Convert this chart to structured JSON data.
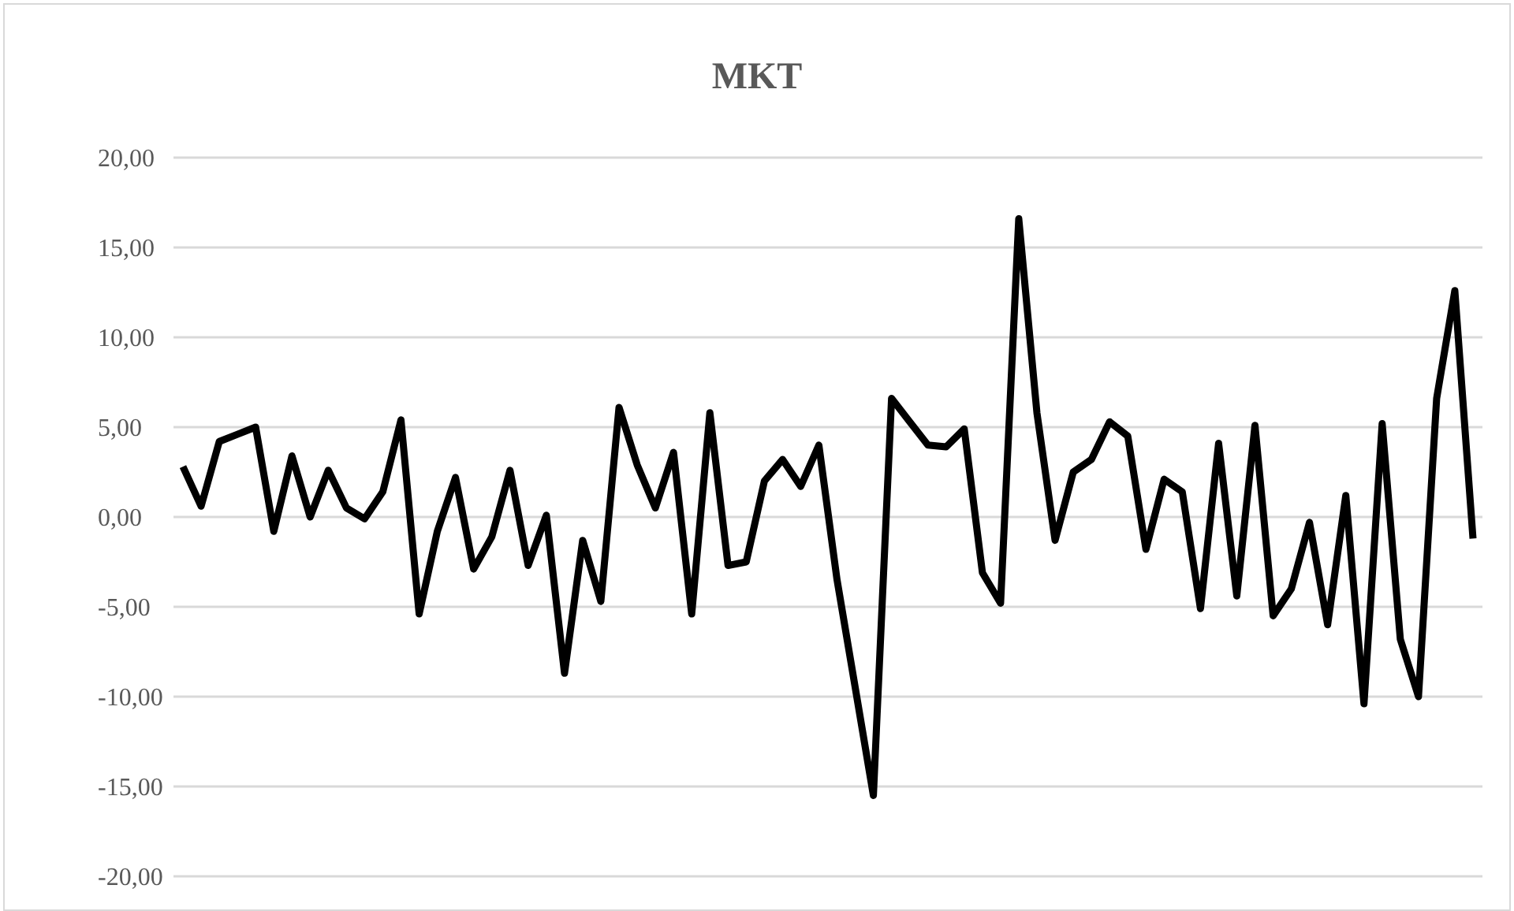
{
  "chart_data": {
    "type": "line",
    "title": "MKT",
    "categories": [
      null,
      null,
      null,
      null,
      null,
      null,
      null,
      null,
      null,
      null,
      null,
      null,
      null,
      null,
      null,
      null,
      null,
      null,
      null,
      null,
      null,
      null,
      null,
      null,
      null,
      null,
      null,
      null,
      null,
      null,
      null,
      null,
      null,
      null,
      null,
      null,
      null,
      null,
      null,
      null,
      null,
      null,
      null,
      null,
      null,
      null,
      null,
      null,
      null,
      null,
      null,
      null,
      null,
      null,
      null,
      null,
      null,
      null,
      null,
      null,
      null,
      null,
      null,
      null,
      null,
      null,
      null,
      null,
      null,
      null,
      null,
      null
    ],
    "series": [
      {
        "color": "#000000",
        "values": [
          2.8,
          0.6,
          4.2,
          4.6,
          5.0,
          -0.8,
          3.4,
          0.0,
          2.6,
          0.5,
          -0.1,
          1.4,
          5.4,
          -5.4,
          -0.8,
          2.2,
          -2.9,
          -1.1,
          2.6,
          -2.7,
          0.1,
          -8.7,
          -1.3,
          -4.7,
          6.1,
          2.9,
          0.5,
          3.6,
          -5.4,
          5.8,
          -2.7,
          -2.5,
          2.0,
          3.2,
          1.7,
          4.0,
          -3.5,
          -9.5,
          -15.5,
          6.6,
          5.3,
          4.0,
          3.9,
          4.9,
          -3.1,
          -4.8,
          16.6,
          5.8,
          -1.3,
          2.5,
          3.2,
          5.3,
          4.5,
          -1.8,
          2.1,
          1.4,
          -5.1,
          4.1,
          -4.4,
          5.1,
          -5.5,
          -4.0,
          -0.3,
          -6.0,
          1.2,
          -10.4,
          5.2,
          -6.8,
          -10.0,
          6.6,
          12.6,
          -1.2
        ]
      }
    ],
    "ylim": [
      -20,
      20
    ],
    "yticks": [
      {
        "value": -20,
        "label": "-20,00"
      },
      {
        "value": -15,
        "label": "-15,00"
      },
      {
        "value": -10,
        "label": "-10,00"
      },
      {
        "value": -5,
        "label": "-5,00"
      },
      {
        "value": 0,
        "label": "0,00"
      },
      {
        "value": 5,
        "label": "5,00"
      },
      {
        "value": 10,
        "label": "10,00"
      },
      {
        "value": 15,
        "label": "15,00"
      },
      {
        "value": 20,
        "label": "20,00"
      }
    ],
    "grid": "y",
    "tick_labels": "y",
    "marker": "none",
    "line_style": "solid",
    "legend": false
  }
}
